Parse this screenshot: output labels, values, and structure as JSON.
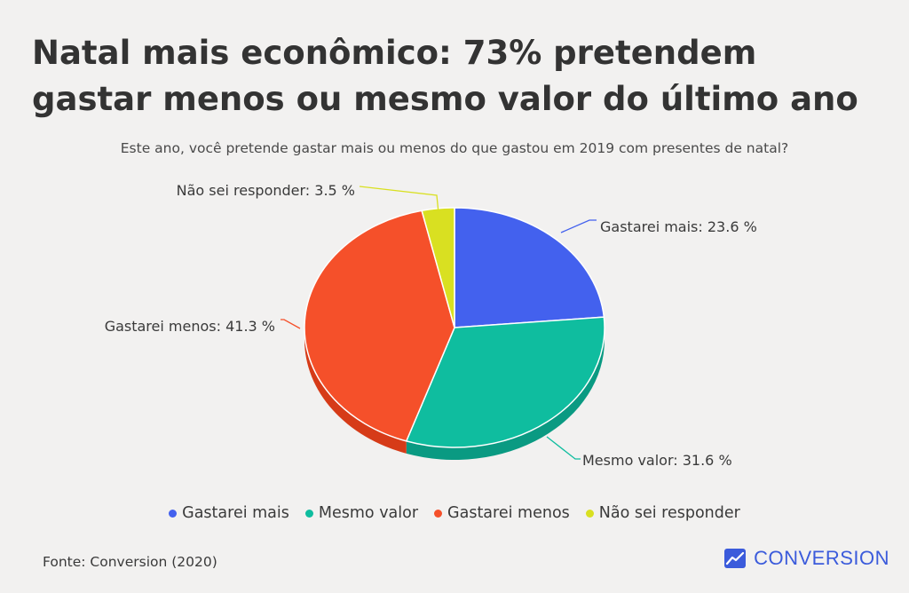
{
  "title": "Natal mais econômico: 73% pretendem gastar menos ou mesmo valor do último ano",
  "subtitle": "Este ano, você pretende gastar mais ou menos do que gastou em 2019 com presentes de natal?",
  "source": "Fonte: Conversion (2020)",
  "brand": {
    "name": "CONVERSION",
    "icon": "chart-line-icon",
    "color": "#3b5bdb"
  },
  "chart_data": {
    "type": "pie",
    "title": "Este ano, você pretende gastar mais ou menos do que gastou em 2019 com presentes de natal?",
    "legend_position": "bottom",
    "slices": [
      {
        "name": "Gastarei mais",
        "value": 23.6,
        "label": "Gastarei mais: 23.6 %",
        "color": "#4361ee",
        "shade": "#2f48c9"
      },
      {
        "name": "Mesmo valor",
        "value": 31.6,
        "label": "Mesmo valor: 31.6 %",
        "color": "#0fbd9f",
        "shade": "#0a9a82"
      },
      {
        "name": "Gastarei menos",
        "value": 41.3,
        "label": "Gastarei menos: 41.3 %",
        "color": "#f5502a",
        "shade": "#d63b18"
      },
      {
        "name": "Não sei responder",
        "value": 3.5,
        "label": "Não sei responder: 3.5 %",
        "color": "#d9e021",
        "shade": "#b7bd12"
      }
    ]
  }
}
